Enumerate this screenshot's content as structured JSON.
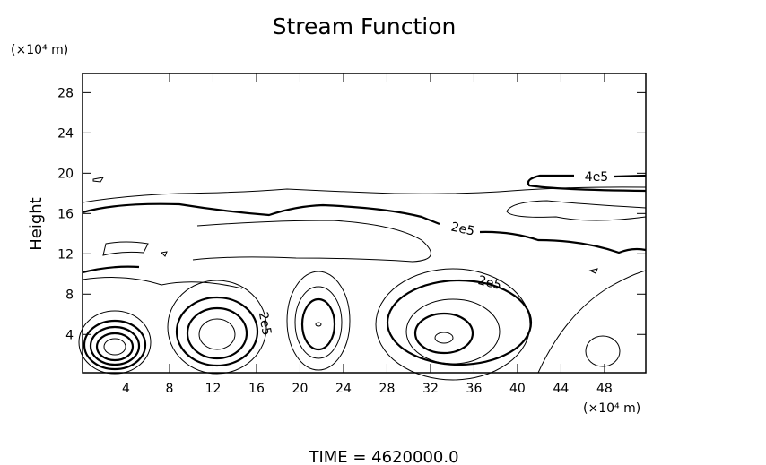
{
  "chart_data": {
    "type": "contour",
    "title": "Stream Function",
    "ylabel": "Height",
    "y_unit": "(×10⁴ m)",
    "x_unit": "(×10⁴ m)",
    "xlim": [
      0,
      51.8
    ],
    "ylim": [
      0.2,
      29.9
    ],
    "xticks": [
      4,
      8,
      12,
      16,
      20,
      24,
      28,
      32,
      36,
      40,
      44,
      48
    ],
    "yticks": [
      4,
      8,
      12,
      16,
      20,
      24,
      28
    ],
    "contour_labels": [
      "4e5",
      "2e5",
      "2e5",
      "2e5"
    ],
    "footer": "TIME = 4620000.0"
  }
}
